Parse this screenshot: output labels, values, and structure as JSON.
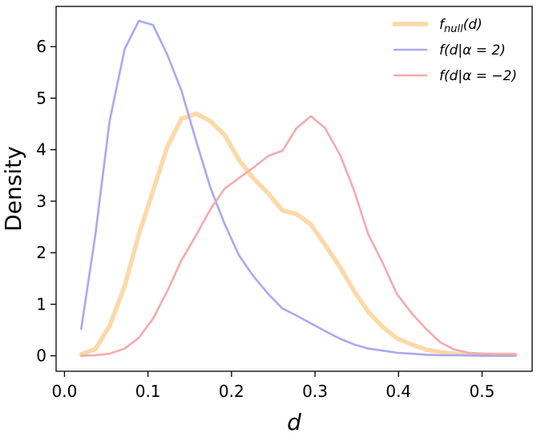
{
  "chart_data": {
    "type": "line",
    "xlabel": "d",
    "ylabel": "Density",
    "xlim": [
      -0.01,
      0.56
    ],
    "ylim": [
      -0.3,
      6.78
    ],
    "xticks": [
      "0.0",
      "0.1",
      "0.2",
      "0.3",
      "0.4",
      "0.5"
    ],
    "yticks": [
      "0",
      "1",
      "2",
      "3",
      "4",
      "5",
      "6"
    ],
    "grid": false,
    "legend_position": "top-right",
    "series": [
      {
        "name": "f_null(d)",
        "legend_main": "f",
        "legend_sub": "null",
        "legend_tail": "(d)",
        "color": "#fdd9a8",
        "x": [
          0.02,
          0.037,
          0.054,
          0.072,
          0.089,
          0.106,
          0.123,
          0.14,
          0.158,
          0.175,
          0.192,
          0.209,
          0.226,
          0.244,
          0.261,
          0.278,
          0.295,
          0.312,
          0.33,
          0.347,
          0.364,
          0.381,
          0.398,
          0.416,
          0.433,
          0.45,
          0.467,
          0.484,
          0.502,
          0.519,
          0.54
        ],
        "y": [
          0.03,
          0.13,
          0.58,
          1.35,
          2.35,
          3.2,
          4.05,
          4.6,
          4.7,
          4.55,
          4.28,
          3.8,
          3.45,
          3.15,
          2.82,
          2.75,
          2.55,
          2.15,
          1.72,
          1.25,
          0.85,
          0.56,
          0.34,
          0.22,
          0.12,
          0.07,
          0.04,
          0.02,
          0.02,
          0.02,
          0.02
        ]
      },
      {
        "name": "f(d|α = 2)",
        "legend_main": "f(d|α = 2)",
        "color": "#a9a9f3",
        "x": [
          0.02,
          0.037,
          0.054,
          0.072,
          0.089,
          0.106,
          0.123,
          0.14,
          0.158,
          0.175,
          0.192,
          0.209,
          0.226,
          0.244,
          0.261,
          0.278,
          0.295,
          0.312,
          0.33,
          0.347,
          0.364,
          0.381,
          0.398,
          0.416,
          0.433,
          0.45,
          0.467,
          0.484,
          0.502,
          0.519,
          0.54
        ],
        "y": [
          0.52,
          2.35,
          4.55,
          5.95,
          6.5,
          6.42,
          5.85,
          5.15,
          4.15,
          3.25,
          2.55,
          1.95,
          1.55,
          1.2,
          0.92,
          0.78,
          0.63,
          0.48,
          0.33,
          0.22,
          0.14,
          0.1,
          0.06,
          0.04,
          0.02,
          0.01,
          0.01,
          0.01,
          0.0,
          0.0,
          0.0
        ]
      },
      {
        "name": "f(d|α = −2)",
        "legend_main": "f(d|α = −2)",
        "color": "#f5aaae",
        "x": [
          0.02,
          0.037,
          0.054,
          0.072,
          0.089,
          0.106,
          0.123,
          0.14,
          0.158,
          0.175,
          0.192,
          0.209,
          0.226,
          0.244,
          0.261,
          0.278,
          0.295,
          0.312,
          0.33,
          0.347,
          0.364,
          0.381,
          0.398,
          0.416,
          0.433,
          0.45,
          0.467,
          0.484,
          0.502,
          0.519,
          0.54
        ],
        "y": [
          0.0,
          0.01,
          0.04,
          0.14,
          0.35,
          0.72,
          1.25,
          1.85,
          2.35,
          2.85,
          3.25,
          3.45,
          3.65,
          3.88,
          3.98,
          4.42,
          4.65,
          4.42,
          3.9,
          3.2,
          2.35,
          1.8,
          1.2,
          0.82,
          0.52,
          0.26,
          0.12,
          0.06,
          0.04,
          0.03,
          0.03
        ]
      }
    ]
  }
}
